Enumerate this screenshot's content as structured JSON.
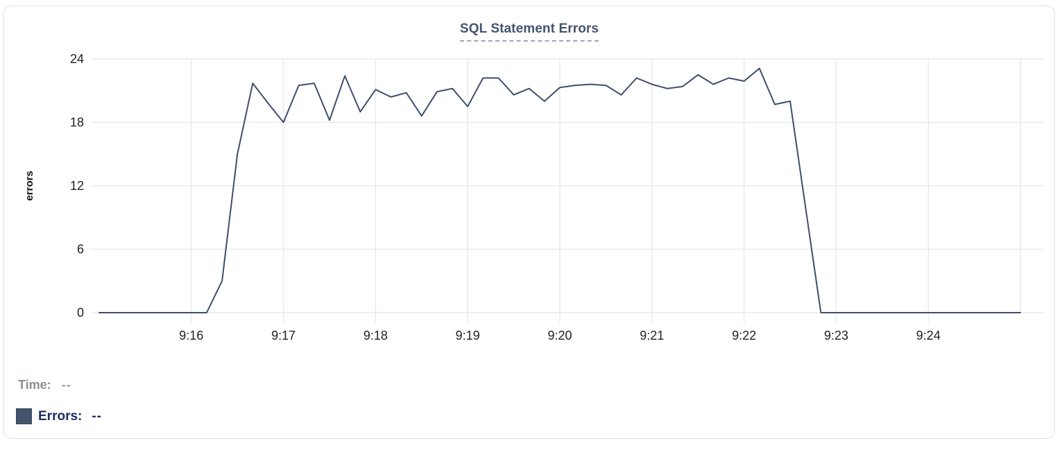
{
  "card": {
    "title": "SQL Statement Errors"
  },
  "chart_data": {
    "type": "line",
    "title": "SQL Statement Errors",
    "xlabel": "",
    "ylabel": "errors",
    "ylim": [
      0,
      24
    ],
    "yticks": [
      0,
      6,
      12,
      18,
      24
    ],
    "x_tick_labels": [
      "9:16",
      "9:17",
      "9:18",
      "9:19",
      "9:20",
      "9:21",
      "9:22",
      "9:23",
      "9:24"
    ],
    "x_gridlines": [
      "9:16",
      "9:17",
      "9:18",
      "9:19",
      "9:20",
      "9:21",
      "9:22",
      "9:23",
      "9:24",
      "9:25"
    ],
    "grid": true,
    "legend_position": "below-left",
    "series": [
      {
        "name": "Errors",
        "color": "#3e4d6b",
        "x_start": "9:15:00",
        "x_end": "9:25:00",
        "interval_seconds": 10,
        "values": [
          0,
          0,
          0,
          0,
          0,
          0,
          0,
          0,
          3,
          15,
          21.7,
          19.8,
          18,
          21.5,
          21.7,
          18.2,
          22.4,
          19,
          21.1,
          20.4,
          20.8,
          18.6,
          20.9,
          21.2,
          19.5,
          22.2,
          22.2,
          20.6,
          21.2,
          20,
          21.3,
          21.5,
          21.6,
          21.5,
          20.6,
          22.2,
          21.6,
          21.2,
          21.4,
          22.5,
          21.6,
          22.2,
          21.9,
          23.1,
          19.7,
          20,
          10,
          0,
          0,
          0,
          0,
          0,
          0,
          0,
          0,
          0,
          0,
          0,
          0,
          0,
          0
        ]
      }
    ]
  },
  "tooltip": {
    "time_label": "Time:",
    "time_value": "--",
    "errors_label": "Errors:",
    "errors_value": "--",
    "swatch_color": "#44536e"
  },
  "colors": {
    "accent_title": "#44546f",
    "line": "#3e4d6b",
    "grid": "#e9eaec",
    "tick_text": "#202124",
    "card_border": "#dfe1e5"
  }
}
